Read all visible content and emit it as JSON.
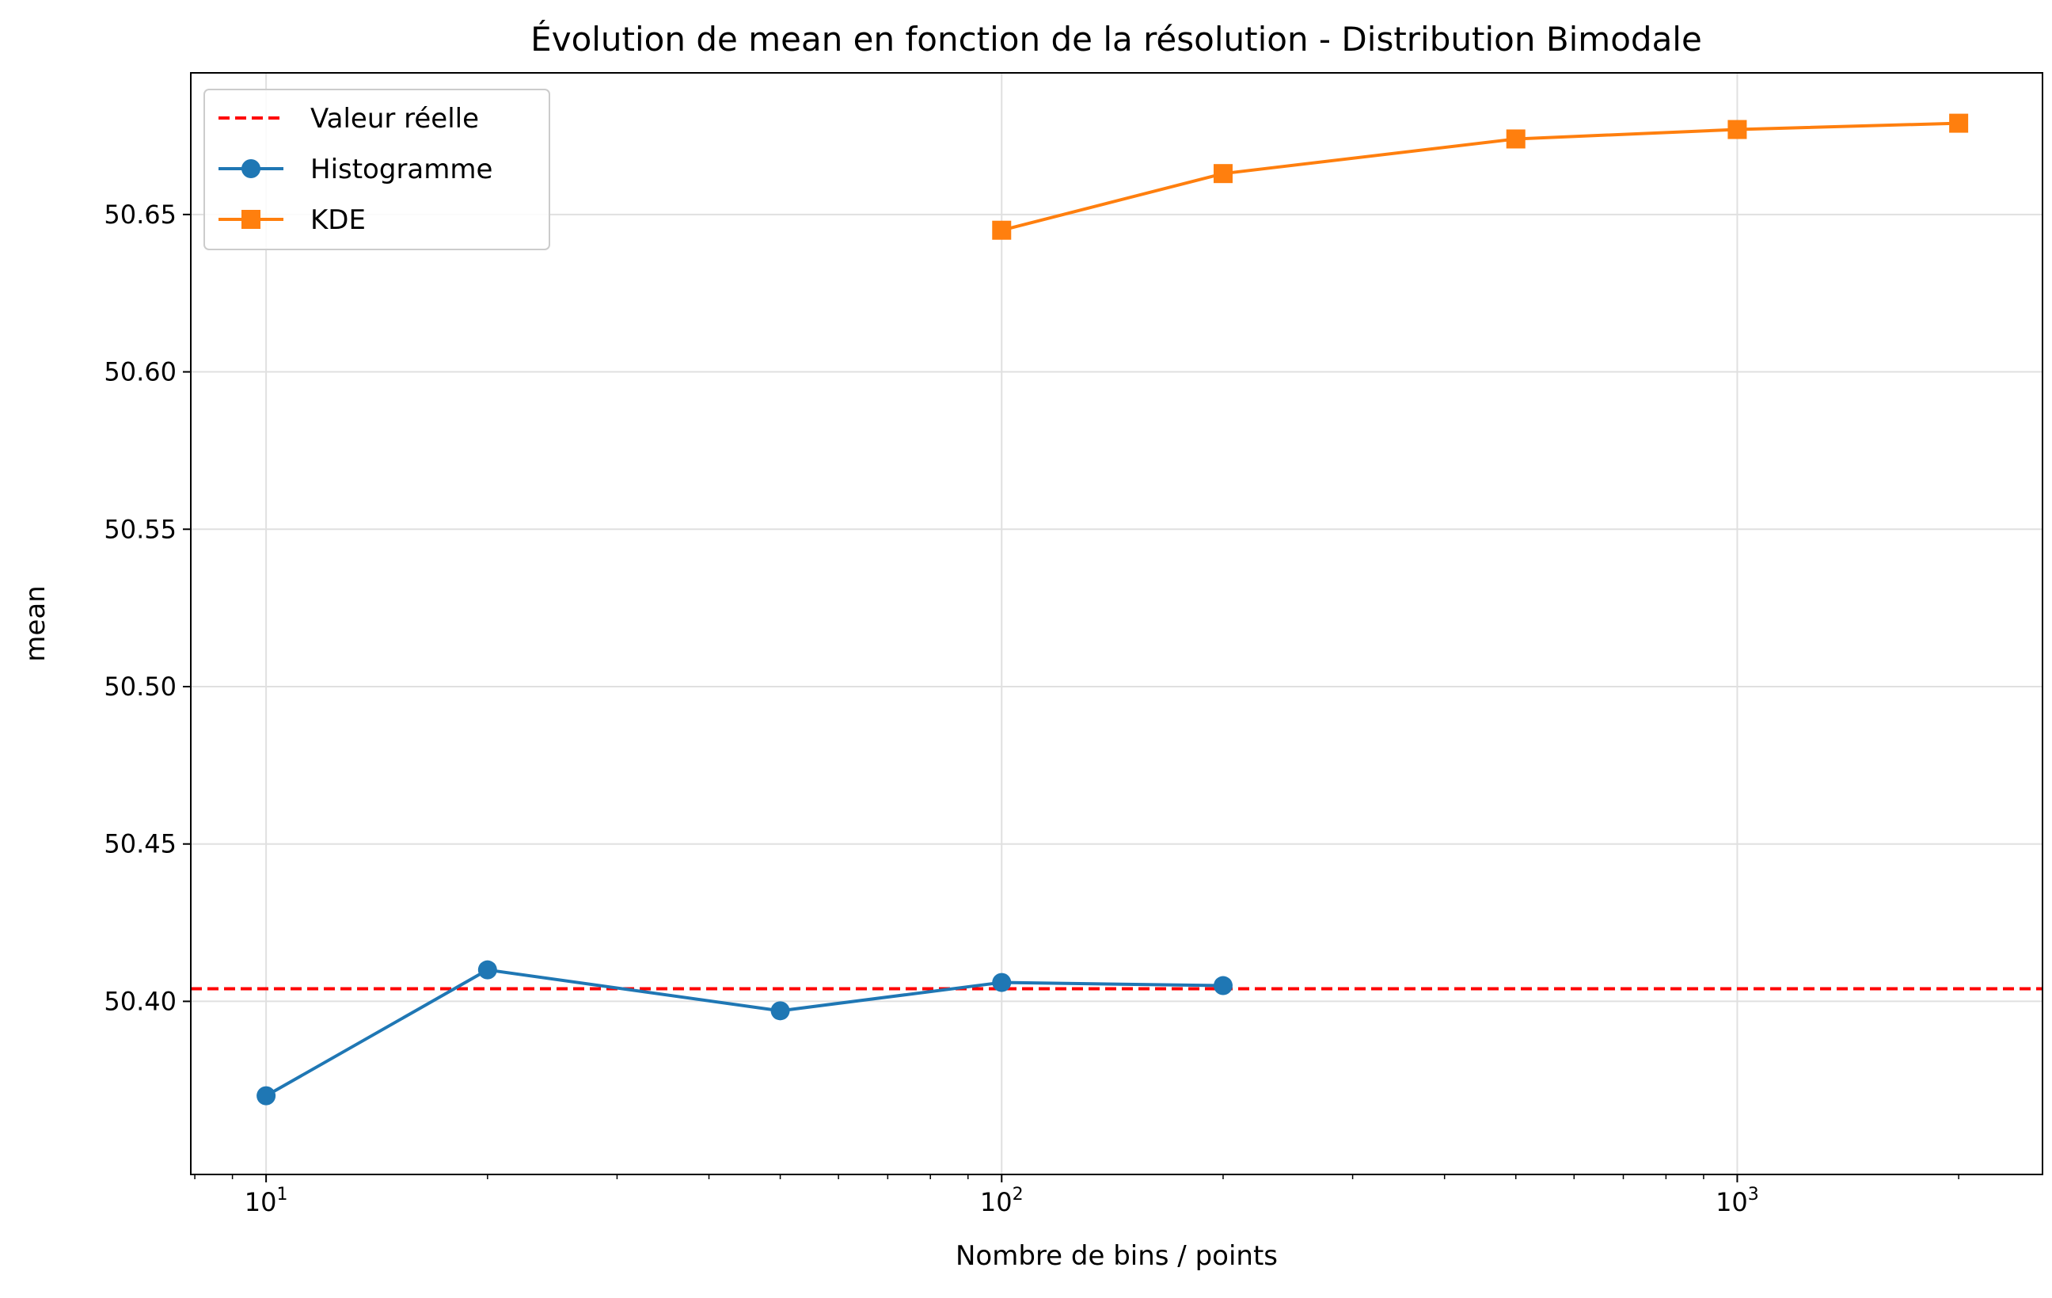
{
  "chart_data": {
    "type": "line",
    "title": "Évolution de mean en fonction de la résolution - Distribution Bimodale",
    "xlabel": "Nombre de bins / points",
    "ylabel": "mean",
    "xscale": "log",
    "xlim": [
      7.9,
      2600
    ],
    "ylim": [
      50.345,
      50.695
    ],
    "grid": true,
    "legend_position": "top-left",
    "x_ticks": [
      {
        "base": "10",
        "exp": "1",
        "value": 10
      },
      {
        "base": "10",
        "exp": "2",
        "value": 100
      },
      {
        "base": "10",
        "exp": "3",
        "value": 1000
      }
    ],
    "y_ticks": [
      "50.40",
      "50.45",
      "50.50",
      "50.55",
      "50.60",
      "50.65"
    ],
    "reference_line": {
      "name": "Valeur réelle",
      "y": 50.404,
      "color": "#ff0000",
      "style": "dashed"
    },
    "series": [
      {
        "name": "Histogramme",
        "color": "#1f77b4",
        "marker": "circle",
        "x": [
          10,
          20,
          50,
          100,
          200
        ],
        "y": [
          50.37,
          50.41,
          50.397,
          50.406,
          50.405
        ]
      },
      {
        "name": "KDE",
        "color": "#ff7f0e",
        "marker": "square",
        "x": [
          100,
          200,
          500,
          1000,
          2000
        ],
        "y": [
          50.645,
          50.663,
          50.674,
          50.677,
          50.679
        ]
      }
    ]
  }
}
